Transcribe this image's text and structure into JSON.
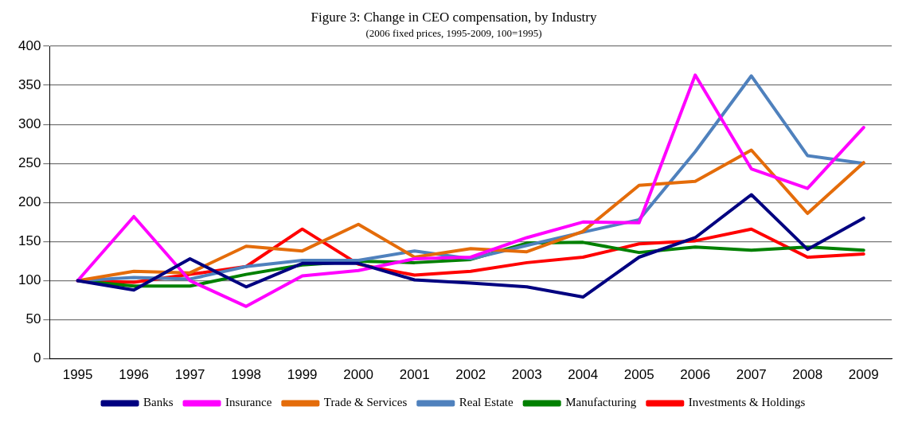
{
  "chart_data": {
    "type": "line",
    "title": "Figure 3: Change in CEO compensation, by Industry",
    "subtitle": "(2006 fixed prices, 1995-2009, 100=1995)",
    "categories": [
      "1995",
      "1996",
      "1997",
      "1998",
      "1999",
      "2000",
      "2001",
      "2002",
      "2003",
      "2004",
      "2005",
      "2006",
      "2007",
      "2008",
      "2009"
    ],
    "series": [
      {
        "name": "Banks",
        "color": "#000080",
        "values": [
          100,
          88,
          128,
          92,
          122,
          122,
          101,
          97,
          92,
          79,
          130,
          155,
          210,
          140,
          180
        ]
      },
      {
        "name": "Insurance",
        "color": "#ff00ff",
        "values": [
          100,
          182,
          100,
          67,
          106,
          113,
          128,
          130,
          155,
          175,
          174,
          363,
          243,
          218,
          296
        ]
      },
      {
        "name": "Trade & Services",
        "color": "#e46c0a",
        "values": [
          100,
          112,
          110,
          144,
          138,
          172,
          130,
          141,
          137,
          163,
          222,
          227,
          267,
          186,
          251
        ]
      },
      {
        "name": "Real Estate",
        "color": "#4f81bd",
        "values": [
          100,
          104,
          102,
          118,
          126,
          126,
          138,
          128,
          145,
          162,
          178,
          265,
          362,
          260,
          250
        ]
      },
      {
        "name": "Manufacturing",
        "color": "#008000",
        "values": [
          100,
          93,
          93,
          108,
          120,
          125,
          123,
          127,
          148,
          149,
          136,
          143,
          139,
          143,
          139
        ]
      },
      {
        "name": "Investments & Holdings",
        "color": "#ff0000",
        "values": [
          100,
          98,
          108,
          118,
          166,
          121,
          107,
          112,
          123,
          130,
          147,
          151,
          166,
          130,
          134
        ]
      }
    ],
    "ylim": [
      0,
      400
    ],
    "yticks": [
      0,
      50,
      100,
      150,
      200,
      250,
      300,
      350,
      400
    ],
    "grid": "y",
    "legend": "bottom",
    "marker": "none",
    "line_style": "solid"
  }
}
